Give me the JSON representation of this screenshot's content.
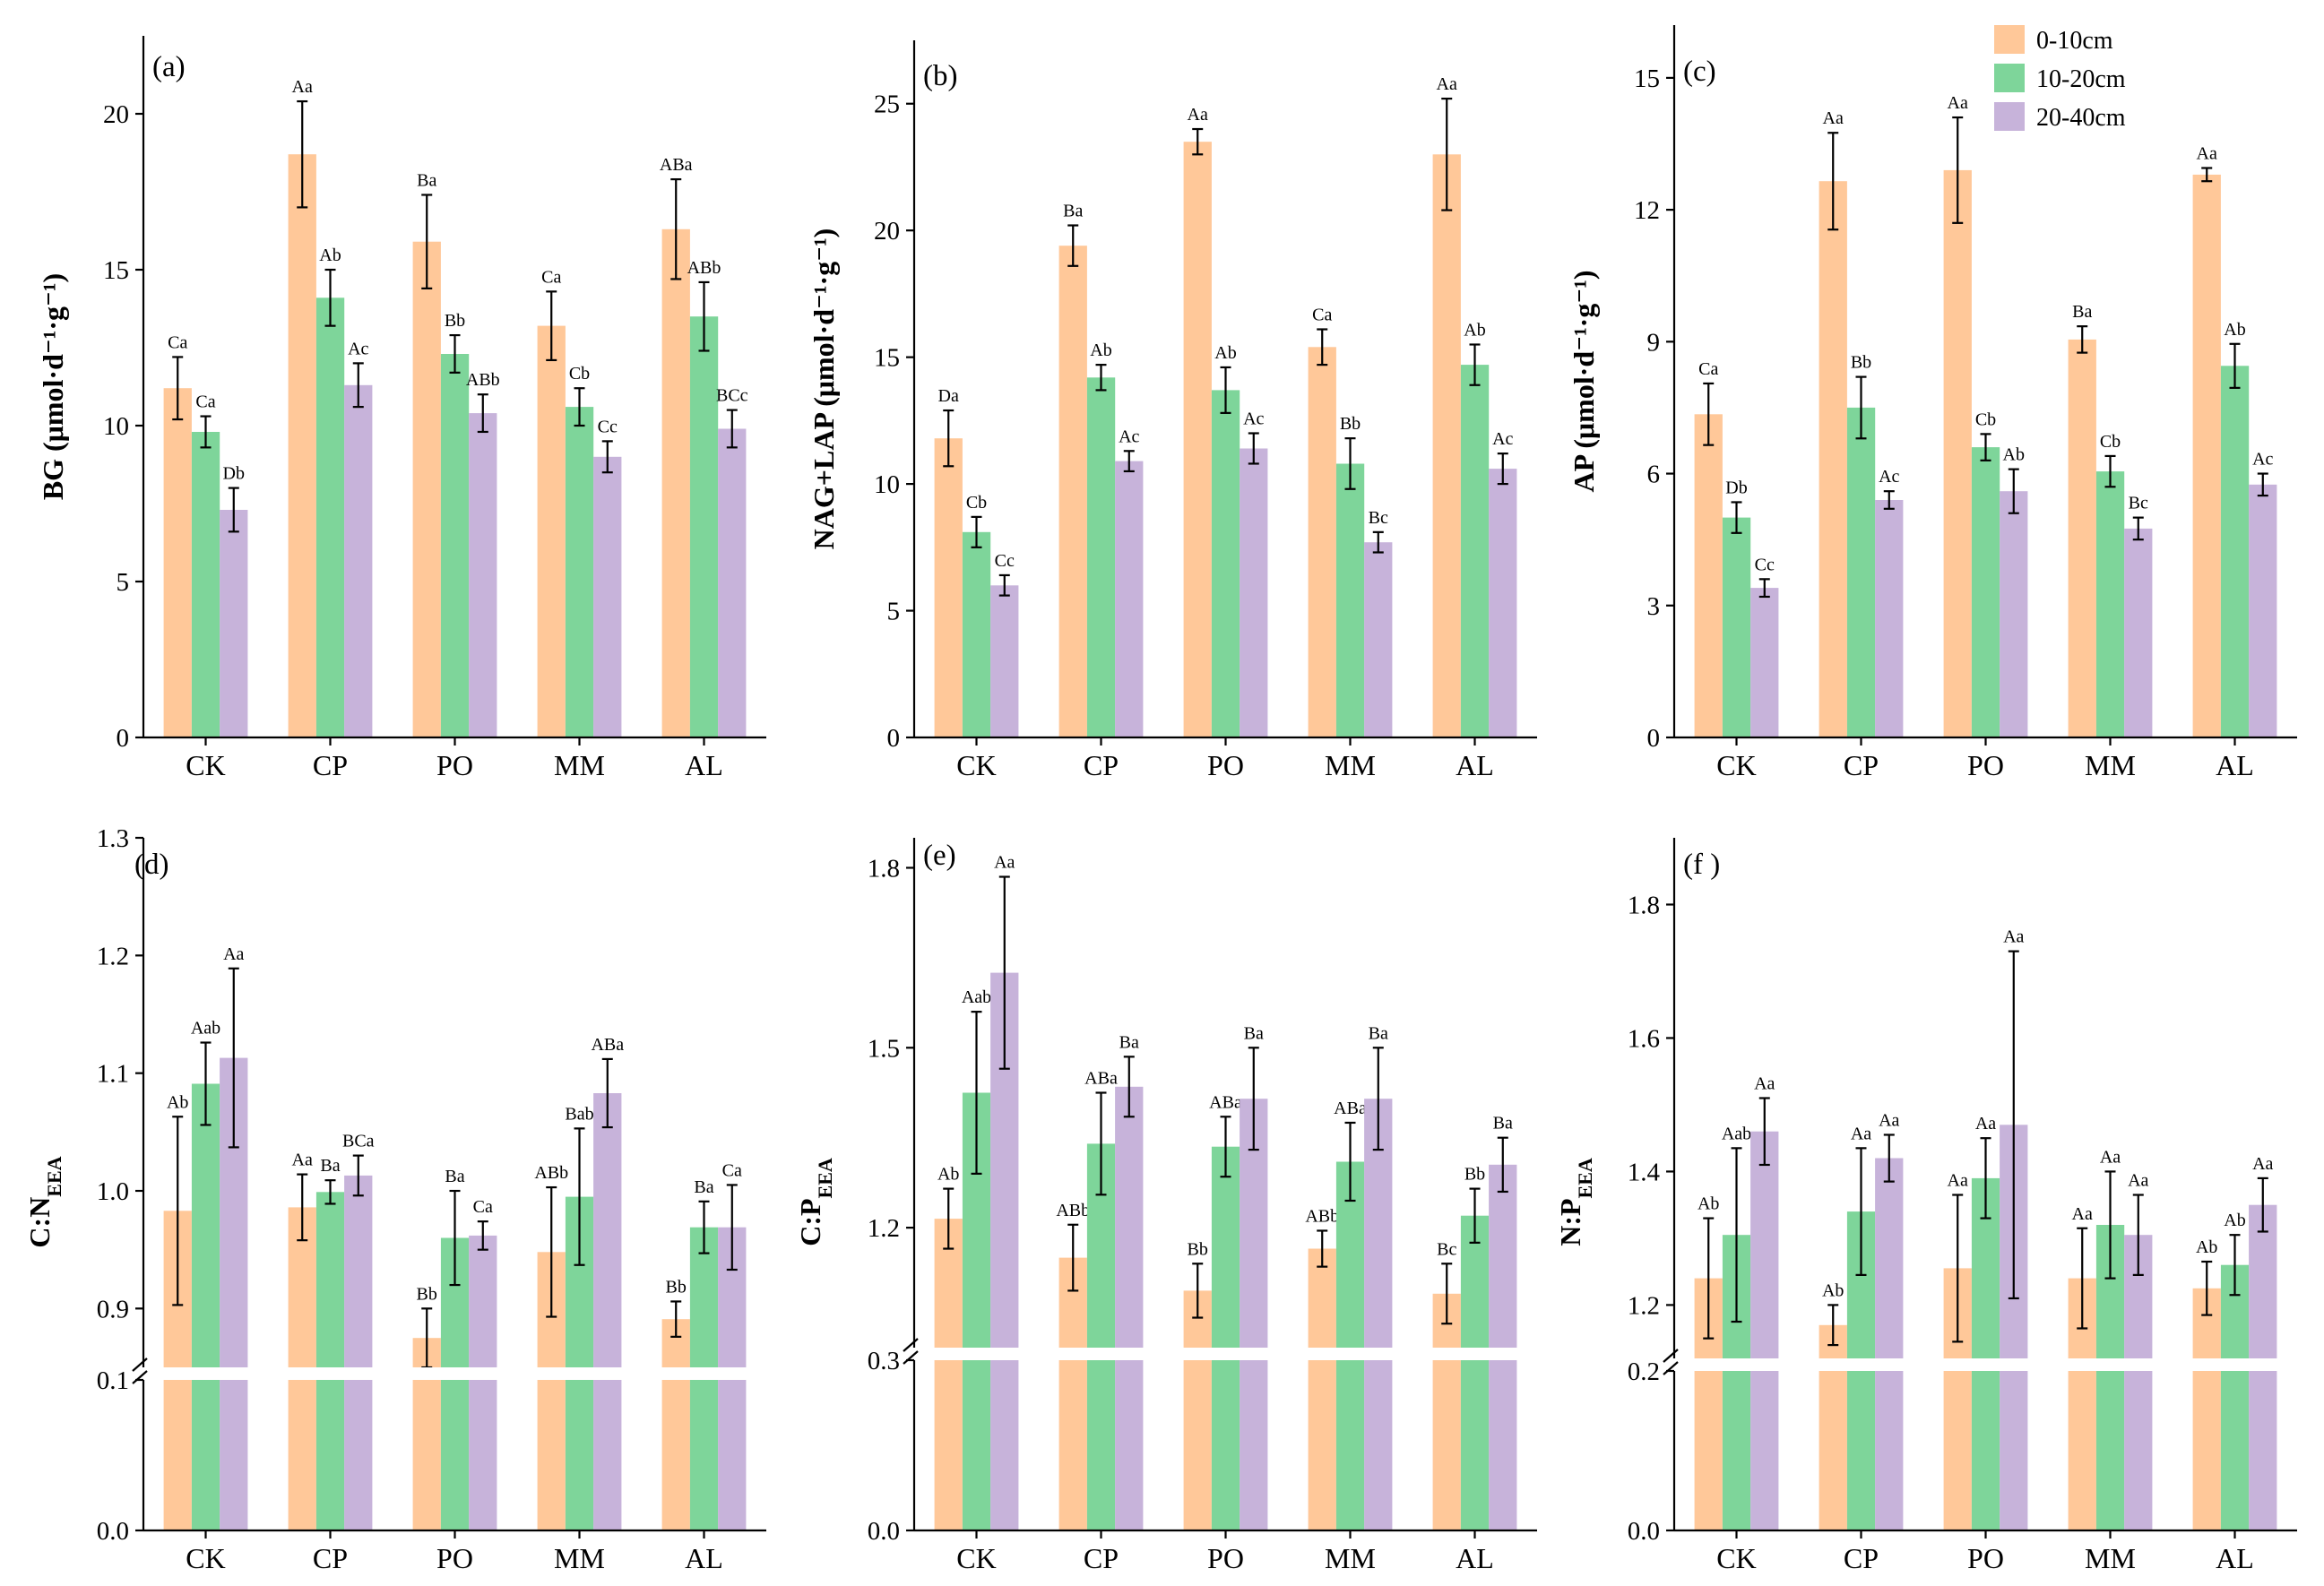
{
  "legend": {
    "items": [
      {
        "label": "0-10cm",
        "color": "#FFC899"
      },
      {
        "label": "10-20cm",
        "color": "#7ED59A"
      },
      {
        "label": "20-40cm",
        "color": "#C7B3DA"
      }
    ]
  },
  "chart_data": [
    {
      "type": "bar",
      "panel": "(a)",
      "ylabel": "BG (μmol·d⁻¹·g⁻¹)",
      "ylabel_main": "BG",
      "ylabel_unit": "(μmol·d⁻¹·g⁻¹)",
      "categories": [
        "CK",
        "CP",
        "PO",
        "MM",
        "AL"
      ],
      "ylim": [
        0,
        22.5
      ],
      "yticks": [
        0,
        5,
        10,
        15,
        20
      ],
      "ytick_labels": [
        "0",
        "5",
        "10",
        "15",
        "20"
      ],
      "series": [
        {
          "name": "0-10cm",
          "values": [
            11.2,
            18.7,
            15.9,
            13.2,
            16.3
          ],
          "errors": [
            1.0,
            1.7,
            1.5,
            1.1,
            1.6
          ],
          "labels": [
            "Ca",
            "Aa",
            "Ba",
            "Ca",
            "ABa"
          ]
        },
        {
          "name": "10-20cm",
          "values": [
            9.8,
            14.1,
            12.3,
            10.6,
            13.5
          ],
          "errors": [
            0.5,
            0.9,
            0.6,
            0.6,
            1.1
          ],
          "labels": [
            "Ca",
            "Ab",
            "Bb",
            "Cb",
            "ABb"
          ]
        },
        {
          "name": "20-40cm",
          "values": [
            7.3,
            11.3,
            10.4,
            9.0,
            9.9
          ],
          "errors": [
            0.7,
            0.7,
            0.6,
            0.5,
            0.6
          ],
          "labels": [
            "Db",
            "Ac",
            "ABb",
            "Cc",
            "BCc"
          ]
        }
      ]
    },
    {
      "type": "bar",
      "panel": "(b)",
      "ylabel": "NAG+LAP (μmol·d⁻¹·g⁻¹)",
      "ylabel_main": "NAG+LAP",
      "ylabel_unit": "(μmol·d⁻¹·g⁻¹)",
      "categories": [
        "CK",
        "CP",
        "PO",
        "MM",
        "AL"
      ],
      "ylim": [
        0,
        27.5
      ],
      "yticks": [
        0,
        5,
        10,
        15,
        20,
        25
      ],
      "ytick_labels": [
        "0",
        "5",
        "10",
        "15",
        "20",
        "25"
      ],
      "series": [
        {
          "name": "0-10cm",
          "values": [
            11.8,
            19.4,
            23.5,
            15.4,
            23.0
          ],
          "errors": [
            1.1,
            0.8,
            0.5,
            0.7,
            2.2
          ],
          "labels": [
            "Da",
            "Ba",
            "Aa",
            "Ca",
            "Aa"
          ]
        },
        {
          "name": "10-20cm",
          "values": [
            8.1,
            14.2,
            13.7,
            10.8,
            14.7
          ],
          "errors": [
            0.6,
            0.5,
            0.9,
            1.0,
            0.8
          ],
          "labels": [
            "Cb",
            "Ab",
            "Ab",
            "Bb",
            "Ab"
          ]
        },
        {
          "name": "20-40cm",
          "values": [
            6.0,
            10.9,
            11.4,
            7.7,
            10.6
          ],
          "errors": [
            0.4,
            0.4,
            0.6,
            0.4,
            0.6
          ],
          "labels": [
            "Cc",
            "Ac",
            "Ac",
            "Bc",
            "Ac"
          ]
        }
      ]
    },
    {
      "type": "bar",
      "panel": "(c)",
      "ylabel": "AP (μmol·d⁻¹·g⁻¹)",
      "ylabel_main": "AP",
      "ylabel_unit": "(μmol·d⁻¹·g⁻¹)",
      "categories": [
        "CK",
        "CP",
        "PO",
        "MM",
        "AL"
      ],
      "ylim": [
        0,
        16.2
      ],
      "yticks": [
        0,
        3,
        6,
        9,
        12,
        15
      ],
      "ytick_labels": [
        "0",
        "3",
        "6",
        "9",
        "12",
        "15"
      ],
      "series": [
        {
          "name": "0-10cm",
          "values": [
            7.35,
            12.65,
            12.9,
            9.05,
            12.8
          ],
          "errors": [
            0.7,
            1.1,
            1.2,
            0.3,
            0.15
          ],
          "labels": [
            "Ca",
            "Aa",
            "Aa",
            "Ba",
            "Aa"
          ]
        },
        {
          "name": "10-20cm",
          "values": [
            5.0,
            7.5,
            6.6,
            6.05,
            8.45
          ],
          "errors": [
            0.35,
            0.7,
            0.3,
            0.35,
            0.5
          ],
          "labels": [
            "Db",
            "Bb",
            "Cb",
            "Cb",
            "Ab"
          ]
        },
        {
          "name": "20-40cm",
          "values": [
            3.4,
            5.4,
            5.6,
            4.75,
            5.75
          ],
          "errors": [
            0.2,
            0.2,
            0.5,
            0.25,
            0.25
          ],
          "labels": [
            "Cc",
            "Ac",
            "Ab",
            "Bc",
            "Ac"
          ]
        }
      ]
    },
    {
      "type": "bar",
      "panel": "(d)",
      "ylabel": "C:N EEA",
      "ylabel_main": "C:N",
      "ylabel_sub": "EEA",
      "categories": [
        "CK",
        "CP",
        "PO",
        "MM",
        "AL"
      ],
      "axis_break": {
        "lower_range": [
          0,
          0.1
        ],
        "upper_range": [
          0.85,
          1.3
        ]
      },
      "yticks": [
        0,
        0.1,
        0.9,
        1.0,
        1.1,
        1.2,
        1.3
      ],
      "ytick_labels": [
        "0.0",
        "0.1",
        "0.9",
        "1.0",
        "1.1",
        "1.2",
        "1.3"
      ],
      "series": [
        {
          "name": "0-10cm",
          "values": [
            0.983,
            0.986,
            0.875,
            0.948,
            0.891
          ],
          "errors": [
            0.08,
            0.028,
            0.025,
            0.055,
            0.015
          ],
          "labels": [
            "Ab",
            "Aa",
            "Bb",
            "ABb",
            "Bb"
          ]
        },
        {
          "name": "10-20cm",
          "values": [
            1.091,
            0.999,
            0.96,
            0.995,
            0.969
          ],
          "errors": [
            0.035,
            0.01,
            0.04,
            0.058,
            0.022
          ],
          "labels": [
            "Aab",
            "Ba",
            "Ba",
            "Bab",
            "Ba"
          ]
        },
        {
          "name": "20-40cm",
          "values": [
            1.113,
            1.013,
            0.962,
            1.083,
            0.969
          ],
          "errors": [
            0.076,
            0.017,
            0.012,
            0.029,
            0.036
          ],
          "labels": [
            "Aa",
            "BCa",
            "Ca",
            "ABa",
            "Ca"
          ]
        }
      ]
    },
    {
      "type": "bar",
      "panel": "(e)",
      "ylabel": "C:P EEA",
      "ylabel_main": "C:P",
      "ylabel_sub": "EEA",
      "categories": [
        "CK",
        "CP",
        "PO",
        "MM",
        "AL"
      ],
      "axis_break": {
        "lower_range": [
          0,
          0.3
        ],
        "upper_range": [
          1.0,
          1.85
        ]
      },
      "yticks": [
        0,
        0.3,
        1.2,
        1.5,
        1.8
      ],
      "ytick_labels": [
        "0.0",
        "0.3",
        "1.2",
        "1.5",
        "1.8"
      ],
      "series": [
        {
          "name": "0-10cm",
          "values": [
            1.215,
            1.15,
            1.095,
            1.165,
            1.09
          ],
          "errors": [
            0.05,
            0.055,
            0.045,
            0.03,
            0.05
          ],
          "labels": [
            "Ab",
            "ABb",
            "Bb",
            "ABb",
            "Bc"
          ]
        },
        {
          "name": "10-20cm",
          "values": [
            1.425,
            1.34,
            1.335,
            1.31,
            1.22
          ],
          "errors": [
            0.135,
            0.085,
            0.05,
            0.065,
            0.045
          ],
          "labels": [
            "Aab",
            "ABa",
            "ABa",
            "ABa",
            "Bb"
          ]
        },
        {
          "name": "20-40cm",
          "values": [
            1.625,
            1.435,
            1.415,
            1.415,
            1.305
          ],
          "errors": [
            0.16,
            0.05,
            0.085,
            0.085,
            0.045
          ],
          "labels": [
            "Aa",
            "Ba",
            "Ba",
            "Ba",
            "Ba"
          ]
        }
      ]
    },
    {
      "type": "bar",
      "panel": "(f )",
      "ylabel": "N:P EEA",
      "ylabel_main": "N:P",
      "ylabel_sub": "EEA",
      "categories": [
        "CK",
        "CP",
        "PO",
        "MM",
        "AL"
      ],
      "axis_break": {
        "lower_range": [
          0,
          0.2
        ],
        "upper_range": [
          1.12,
          1.9
        ]
      },
      "yticks": [
        0,
        0.2,
        1.2,
        1.4,
        1.6,
        1.8
      ],
      "ytick_labels": [
        "0.0",
        "0.2",
        "1.2",
        "1.4",
        "1.6",
        "1.8"
      ],
      "series": [
        {
          "name": "0-10cm",
          "values": [
            1.24,
            1.17,
            1.255,
            1.24,
            1.225
          ],
          "errors": [
            0.09,
            0.03,
            0.11,
            0.075,
            0.04
          ],
          "labels": [
            "Ab",
            "Ab",
            "Aa",
            "Aa",
            "Ab"
          ]
        },
        {
          "name": "10-20cm",
          "values": [
            1.305,
            1.34,
            1.39,
            1.32,
            1.26
          ],
          "errors": [
            0.13,
            0.095,
            0.06,
            0.08,
            0.045
          ],
          "labels": [
            "Aab",
            "Aa",
            "Aa",
            "Aa",
            "Ab"
          ]
        },
        {
          "name": "20-40cm",
          "values": [
            1.46,
            1.42,
            1.47,
            1.305,
            1.35
          ],
          "errors": [
            0.05,
            0.035,
            0.26,
            0.06,
            0.04
          ],
          "labels": [
            "Aa",
            "Aa",
            "Aa",
            "Aa",
            "Aa"
          ]
        }
      ]
    }
  ]
}
